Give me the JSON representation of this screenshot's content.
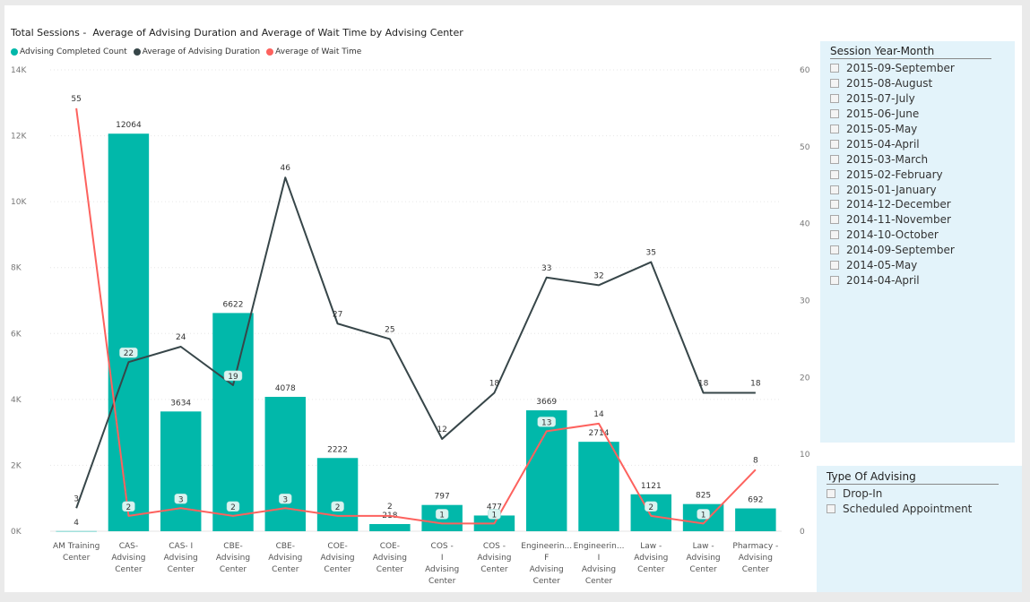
{
  "chart_title": "Total Sessions -  Average of Advising Duration and Average of Wait Time by Advising Center",
  "colors": {
    "bar": "#01b8aa",
    "duration": "#374649",
    "wait": "#fd625e"
  },
  "legend": [
    {
      "label": "Advising Completed Count",
      "color": "#01b8aa"
    },
    {
      "label": "Average of Advising Duration",
      "color": "#374649"
    },
    {
      "label": "Average of Wait Time",
      "color": "#fd625e"
    }
  ],
  "slicer_month": {
    "title": "Session Year-Month",
    "items": [
      "2015-09-September",
      "2015-08-August",
      "2015-07-July",
      "2015-06-June",
      "2015-05-May",
      "2015-04-April",
      "2015-03-March",
      "2015-02-February",
      "2015-01-January",
      "2014-12-December",
      "2014-11-November",
      "2014-10-October",
      "2014-09-September",
      "2014-05-May",
      "2014-04-April"
    ]
  },
  "slicer_type": {
    "title": "Type Of Advising",
    "items": [
      "Drop-In",
      "Scheduled Appointment"
    ]
  },
  "chart_data": {
    "type": "bar",
    "title": "Total Sessions -  Average of Advising Duration and Average of Wait Time by Advising Center",
    "categories": [
      [
        "AM Training",
        "Center"
      ],
      [
        "CAS-",
        "",
        "Advising",
        "Center"
      ],
      [
        "CAS- I",
        "Advising",
        "Center"
      ],
      [
        "CBE-",
        "",
        "Advising",
        "Center"
      ],
      [
        "CBE-",
        "Advising",
        "Center"
      ],
      [
        "COE-",
        "",
        "Advising",
        "Center"
      ],
      [
        "COE-",
        "Advising",
        "Center"
      ],
      [
        "COS -",
        "I",
        "Advising",
        "Center"
      ],
      [
        "COS -",
        "Advising",
        "Center"
      ],
      [
        "Engineerin...",
        "F",
        "Advising",
        "Center"
      ],
      [
        "Engineerin...",
        "I",
        "Advising",
        "Center"
      ],
      [
        "Law -",
        "",
        "Advising",
        "Center"
      ],
      [
        "Law -",
        "Advising",
        "Center"
      ],
      [
        "Pharmacy -",
        "",
        "Advising",
        "Center"
      ]
    ],
    "y_left": {
      "ticks": [
        "0K",
        "2K",
        "4K",
        "6K",
        "8K",
        "10K",
        "12K",
        "14K"
      ],
      "range": [
        0,
        14000
      ]
    },
    "y_right": {
      "ticks": [
        "0",
        "10",
        "20",
        "30",
        "40",
        "50",
        "60"
      ],
      "range": [
        0,
        60
      ]
    },
    "series": [
      {
        "name": "Advising Completed Count",
        "type": "bar",
        "axis": "left",
        "values": [
          4,
          12064,
          3634,
          6622,
          4078,
          2222,
          218,
          797,
          477,
          3669,
          2714,
          1121,
          825,
          692
        ]
      },
      {
        "name": "Average of Advising Duration",
        "type": "line",
        "axis": "right",
        "values": [
          3,
          22,
          24,
          19,
          46,
          27,
          25,
          12,
          18,
          33,
          32,
          35,
          18,
          18
        ]
      },
      {
        "name": "Average of Wait Time",
        "type": "line",
        "axis": "right",
        "values": [
          55,
          2,
          3,
          2,
          3,
          2,
          2,
          1,
          1,
          13,
          14,
          2,
          1,
          8
        ]
      }
    ],
    "label_texts": {
      "bars": [
        "4",
        "12064",
        "3634",
        "6622",
        "4078",
        "2222",
        "218",
        "797",
        "477",
        "3669",
        "2714",
        "1121",
        "825",
        "692"
      ],
      "duration": [
        "3",
        "22",
        "24",
        "19",
        "46",
        "27",
        "25",
        "12",
        "18",
        "33",
        "32",
        "35",
        "18",
        "18"
      ],
      "wait": [
        "55",
        "2",
        "3",
        "2",
        "3",
        "2",
        "2",
        "1",
        "1",
        "13",
        "14",
        "2",
        "1",
        "8"
      ]
    }
  }
}
